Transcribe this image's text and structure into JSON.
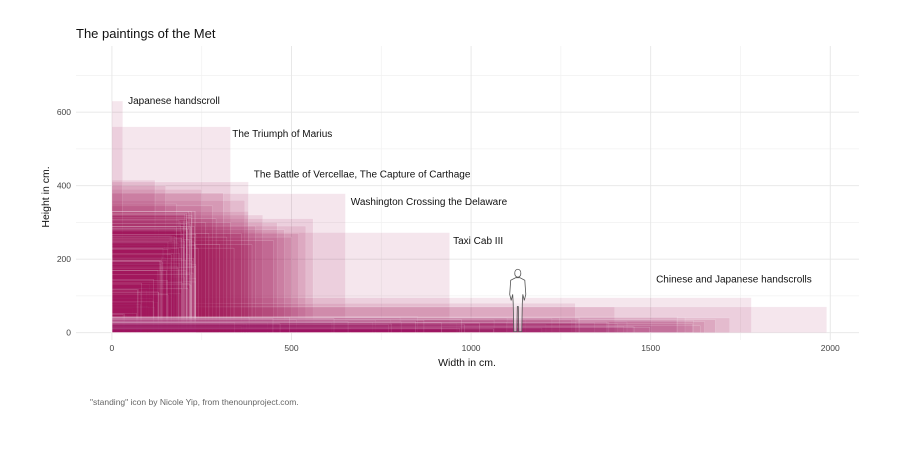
{
  "chart_data": {
    "type": "rectangles",
    "title": "The paintings of the Met",
    "xlabel": "Width in cm.",
    "ylabel": "Height in cm.",
    "xlim": [
      -100,
      2080
    ],
    "ylim": [
      -20,
      780
    ],
    "x_ticks": [
      0,
      500,
      1000,
      1500,
      2000
    ],
    "y_ticks": [
      0,
      200,
      400,
      600
    ],
    "x_tick_labels": [
      "0",
      "500",
      "1000",
      "1500",
      "2000"
    ],
    "y_tick_labels": [
      "0",
      "200",
      "400",
      "600"
    ],
    "grid": true,
    "legend": "none",
    "fill_color": "#a3195b",
    "labeled_paintings": [
      {
        "label": "Japanese handscroll",
        "width": 30,
        "height": 630,
        "label_x": 45,
        "label_y": 630
      },
      {
        "label": "The Triumph of Marius",
        "width": 330,
        "height": 560,
        "label_x": 335,
        "label_y": 540
      },
      {
        "label": "The Battle of Vercellae, The Capture of Carthage",
        "width": 380,
        "height": 410,
        "label_x": 395,
        "label_y": 430
      },
      {
        "label": "Washington Crossing the Delaware",
        "width": 650,
        "height": 378,
        "label_x": 665,
        "label_y": 355
      },
      {
        "label": "Taxi Cab III",
        "width": 940,
        "height": 272,
        "label_x": 950,
        "label_y": 250
      },
      {
        "label": "Chinese and Japanese handscrolls",
        "width": 1990,
        "height": 70,
        "label_x": 1515,
        "label_y": 145
      }
    ],
    "paintings": [
      {
        "width": 1780,
        "height": 95
      },
      {
        "width": 1720,
        "height": 40
      },
      {
        "width": 1680,
        "height": 35
      },
      {
        "width": 1650,
        "height": 30
      },
      {
        "width": 1400,
        "height": 70
      },
      {
        "width": 1290,
        "height": 80
      },
      {
        "width": 1280,
        "height": 35
      },
      {
        "width": 1100,
        "height": 40
      },
      {
        "width": 960,
        "height": 25
      },
      {
        "width": 560,
        "height": 310
      },
      {
        "width": 540,
        "height": 290
      },
      {
        "width": 520,
        "height": 270
      },
      {
        "width": 500,
        "height": 260
      },
      {
        "width": 480,
        "height": 280
      },
      {
        "width": 460,
        "height": 300
      },
      {
        "width": 450,
        "height": 250
      },
      {
        "width": 420,
        "height": 320
      },
      {
        "width": 400,
        "height": 290
      },
      {
        "width": 390,
        "height": 240
      },
      {
        "width": 380,
        "height": 330
      },
      {
        "width": 370,
        "height": 360
      },
      {
        "width": 360,
        "height": 270
      },
      {
        "width": 340,
        "height": 230
      },
      {
        "width": 330,
        "height": 300
      },
      {
        "width": 320,
        "height": 260
      },
      {
        "width": 310,
        "height": 380
      },
      {
        "width": 300,
        "height": 240
      },
      {
        "width": 290,
        "height": 310
      },
      {
        "width": 280,
        "height": 345
      },
      {
        "width": 270,
        "height": 270
      },
      {
        "width": 260,
        "height": 300
      },
      {
        "width": 250,
        "height": 390
      },
      {
        "width": 240,
        "height": 230
      },
      {
        "width": 230,
        "height": 260
      },
      {
        "width": 220,
        "height": 330
      },
      {
        "width": 210,
        "height": 280
      },
      {
        "width": 200,
        "height": 240
      },
      {
        "width": 190,
        "height": 300
      },
      {
        "width": 180,
        "height": 350
      },
      {
        "width": 170,
        "height": 210
      },
      {
        "width": 160,
        "height": 260
      },
      {
        "width": 150,
        "height": 400
      },
      {
        "width": 140,
        "height": 230
      },
      {
        "width": 130,
        "height": 280
      },
      {
        "width": 120,
        "height": 415
      },
      {
        "width": 110,
        "height": 190
      },
      {
        "width": 100,
        "height": 250
      },
      {
        "width": 90,
        "height": 200
      },
      {
        "width": 80,
        "height": 230
      },
      {
        "width": 70,
        "height": 180
      },
      {
        "width": 60,
        "height": 170
      },
      {
        "width": 50,
        "height": 150
      },
      {
        "width": 40,
        "height": 140
      },
      {
        "width": 30,
        "height": 120
      },
      {
        "width": 20,
        "height": 100
      },
      {
        "width": 15,
        "height": 80
      },
      {
        "width": 180,
        "height": 150
      },
      {
        "width": 150,
        "height": 120
      },
      {
        "width": 130,
        "height": 100
      },
      {
        "width": 120,
        "height": 150
      },
      {
        "width": 100,
        "height": 120
      },
      {
        "width": 90,
        "height": 110
      },
      {
        "width": 80,
        "height": 90
      },
      {
        "width": 70,
        "height": 100
      },
      {
        "width": 60,
        "height": 80
      },
      {
        "width": 55,
        "height": 70
      },
      {
        "width": 45,
        "height": 60
      },
      {
        "width": 40,
        "height": 50
      },
      {
        "width": 35,
        "height": 45
      },
      {
        "width": 30,
        "height": 40
      },
      {
        "width": 25,
        "height": 35
      },
      {
        "width": 20,
        "height": 25
      },
      {
        "width": 160,
        "height": 130
      },
      {
        "width": 140,
        "height": 170
      },
      {
        "width": 110,
        "height": 90
      },
      {
        "width": 95,
        "height": 75
      },
      {
        "width": 75,
        "height": 60
      }
    ]
  },
  "human_figure": {
    "icon": "standing-person-icon",
    "x": 1130,
    "height": 170
  },
  "caption": "\"standing\" icon by Nicole Yip, from thenounproject.com."
}
